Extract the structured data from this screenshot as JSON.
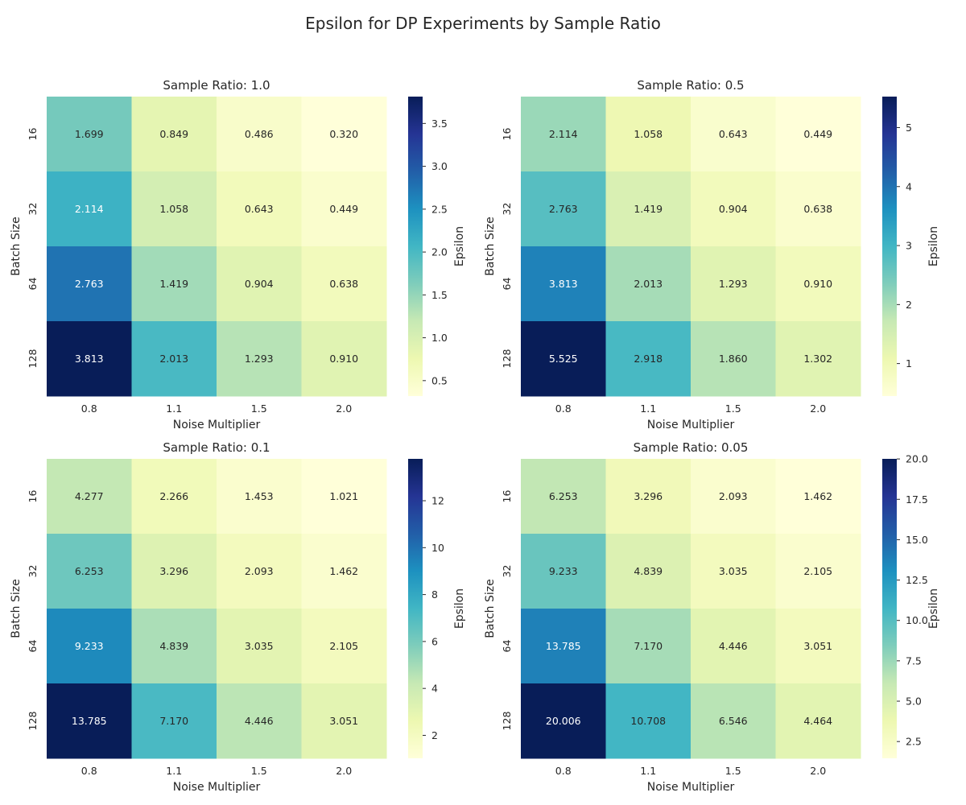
{
  "title": "Epsilon for DP Experiments by Sample Ratio",
  "colors": {
    "colormap": "YlGnBu",
    "stops": [
      "#ffffd9",
      "#edf8b1",
      "#c7e9b4",
      "#7fcdbb",
      "#41b6c4",
      "#1d91c0",
      "#225ea8",
      "#253494",
      "#081d58"
    ],
    "text_dark": "#262626",
    "text_light": "#ffffff"
  },
  "chart_data": [
    {
      "type": "heatmap",
      "title": "Sample Ratio: 1.0",
      "xlabel": "Noise Multiplier",
      "ylabel": "Batch Size",
      "x": [
        "0.8",
        "1.1",
        "1.5",
        "2.0"
      ],
      "y": [
        "16",
        "32",
        "64",
        "128"
      ],
      "values": [
        [
          1.699,
          0.849,
          0.486,
          0.32
        ],
        [
          2.114,
          1.058,
          0.643,
          0.449
        ],
        [
          2.763,
          1.419,
          0.904,
          0.638
        ],
        [
          3.813,
          2.013,
          1.293,
          0.91
        ]
      ],
      "labels": [
        [
          "1.699",
          "0.849",
          "0.486",
          "0.320"
        ],
        [
          "2.114",
          "1.058",
          "0.643",
          "0.449"
        ],
        [
          "2.763",
          "1.419",
          "0.904",
          "0.638"
        ],
        [
          "3.813",
          "2.013",
          "1.293",
          "0.910"
        ]
      ],
      "colorbar": {
        "label": "Epsilon",
        "range": [
          0.32,
          3.813
        ],
        "ticks": [
          0.5,
          1.0,
          1.5,
          2.0,
          2.5,
          3.0,
          3.5
        ],
        "tick_labels": [
          "0.5",
          "1.0",
          "1.5",
          "2.0",
          "2.5",
          "3.0",
          "3.5"
        ]
      }
    },
    {
      "type": "heatmap",
      "title": "Sample Ratio: 0.5",
      "xlabel": "Noise Multiplier",
      "ylabel": "Batch Size",
      "x": [
        "0.8",
        "1.1",
        "1.5",
        "2.0"
      ],
      "y": [
        "16",
        "32",
        "64",
        "128"
      ],
      "values": [
        [
          2.114,
          1.058,
          0.643,
          0.449
        ],
        [
          2.763,
          1.419,
          0.904,
          0.638
        ],
        [
          3.813,
          2.013,
          1.293,
          0.91
        ],
        [
          5.525,
          2.918,
          1.86,
          1.302
        ]
      ],
      "labels": [
        [
          "2.114",
          "1.058",
          "0.643",
          "0.449"
        ],
        [
          "2.763",
          "1.419",
          "0.904",
          "0.638"
        ],
        [
          "3.813",
          "2.013",
          "1.293",
          "0.910"
        ],
        [
          "5.525",
          "2.918",
          "1.860",
          "1.302"
        ]
      ],
      "colorbar": {
        "label": "Epsilon",
        "range": [
          0.449,
          5.525
        ],
        "ticks": [
          1,
          2,
          3,
          4,
          5
        ],
        "tick_labels": [
          "1",
          "2",
          "3",
          "4",
          "5"
        ]
      }
    },
    {
      "type": "heatmap",
      "title": "Sample Ratio: 0.1",
      "xlabel": "Noise Multiplier",
      "ylabel": "Batch Size",
      "x": [
        "0.8",
        "1.1",
        "1.5",
        "2.0"
      ],
      "y": [
        "16",
        "32",
        "64",
        "128"
      ],
      "values": [
        [
          4.277,
          2.266,
          1.453,
          1.021
        ],
        [
          6.253,
          3.296,
          2.093,
          1.462
        ],
        [
          9.233,
          4.839,
          3.035,
          2.105
        ],
        [
          13.785,
          7.17,
          4.446,
          3.051
        ]
      ],
      "labels": [
        [
          "4.277",
          "2.266",
          "1.453",
          "1.021"
        ],
        [
          "6.253",
          "3.296",
          "2.093",
          "1.462"
        ],
        [
          "9.233",
          "4.839",
          "3.035",
          "2.105"
        ],
        [
          "13.785",
          "7.170",
          "4.446",
          "3.051"
        ]
      ],
      "colorbar": {
        "label": "Epsilon",
        "range": [
          1.021,
          13.785
        ],
        "ticks": [
          2,
          4,
          6,
          8,
          10,
          12
        ],
        "tick_labels": [
          "2",
          "4",
          "6",
          "8",
          "10",
          "12"
        ]
      }
    },
    {
      "type": "heatmap",
      "title": "Sample Ratio: 0.05",
      "xlabel": "Noise Multiplier",
      "ylabel": "Batch Size",
      "x": [
        "0.8",
        "1.1",
        "1.5",
        "2.0"
      ],
      "y": [
        "16",
        "32",
        "64",
        "128"
      ],
      "values": [
        [
          6.253,
          3.296,
          2.093,
          1.462
        ],
        [
          9.233,
          4.839,
          3.035,
          2.105
        ],
        [
          13.785,
          7.17,
          4.446,
          3.051
        ],
        [
          20.006,
          10.708,
          6.546,
          4.464
        ]
      ],
      "labels": [
        [
          "6.253",
          "3.296",
          "2.093",
          "1.462"
        ],
        [
          "9.233",
          "4.839",
          "3.035",
          "2.105"
        ],
        [
          "13.785",
          "7.170",
          "4.446",
          "3.051"
        ],
        [
          "20.006",
          "10.708",
          "6.546",
          "4.464"
        ]
      ],
      "colorbar": {
        "label": "Epsilon",
        "range": [
          1.462,
          20.006
        ],
        "ticks": [
          2.5,
          5.0,
          7.5,
          10.0,
          12.5,
          15.0,
          17.5,
          20.0
        ],
        "tick_labels": [
          "2.5",
          "5.0",
          "7.5",
          "10.0",
          "12.5",
          "15.0",
          "17.5",
          "20.0"
        ]
      }
    }
  ]
}
